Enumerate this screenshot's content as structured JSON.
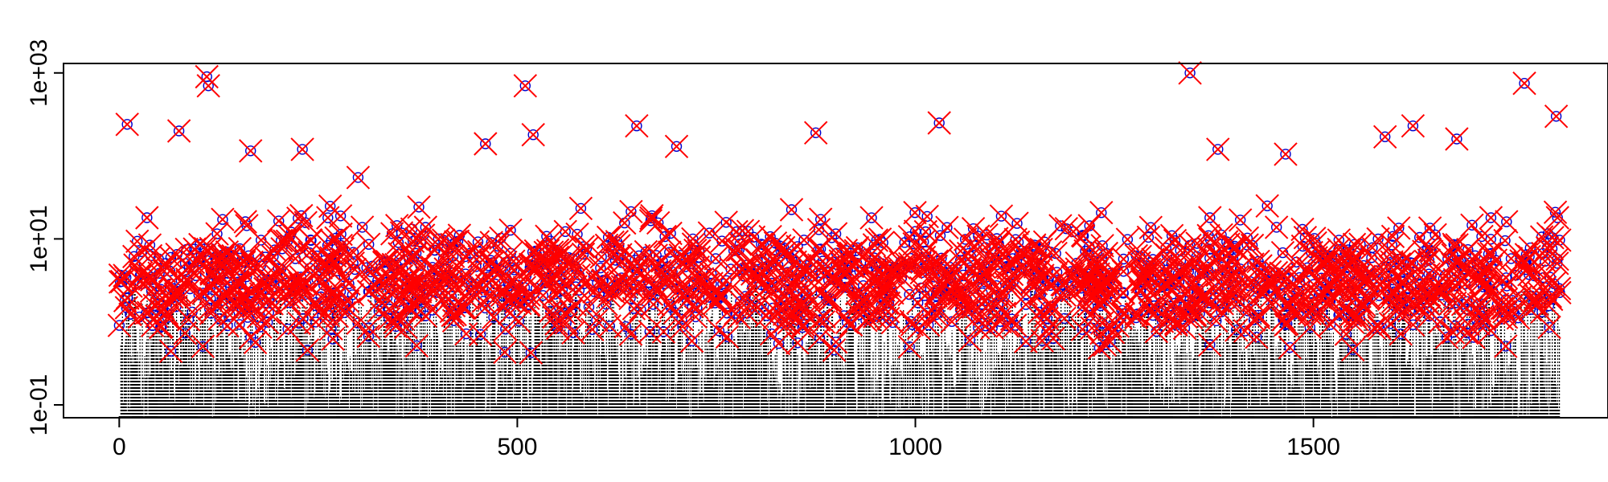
{
  "chart_data": {
    "type": "scatter",
    "title": "",
    "xlabel": "",
    "ylabel": "",
    "x_scale": "linear",
    "y_scale": "log",
    "xlim": [
      -70,
      1870
    ],
    "ylim": [
      0.07,
      1300
    ],
    "grid": false,
    "x_ticks": [
      {
        "value": 0,
        "label": "0"
      },
      {
        "value": 500,
        "label": "500"
      },
      {
        "value": 1000,
        "label": "1000"
      },
      {
        "value": 1500,
        "label": "1500"
      }
    ],
    "y_ticks": [
      {
        "value": 0.1,
        "label": "1e-01"
      },
      {
        "value": 10,
        "label": "1e+01"
      },
      {
        "value": 1000,
        "label": "1e+03"
      }
    ],
    "n_observations": 1810,
    "series_styles": [
      {
        "kind": "dotted-vertical-lines",
        "color": "#000000"
      },
      {
        "kind": "open-circle",
        "color": "#0000cc"
      },
      {
        "kind": "cross",
        "color": "#ff0000"
      }
    ],
    "peaks": [
      {
        "x": 10,
        "y": 240
      },
      {
        "x": 110,
        "y": 900
      },
      {
        "x": 112,
        "y": 700
      },
      {
        "x": 75,
        "y": 200
      },
      {
        "x": 165,
        "y": 115
      },
      {
        "x": 230,
        "y": 120
      },
      {
        "x": 300,
        "y": 55
      },
      {
        "x": 460,
        "y": 140
      },
      {
        "x": 510,
        "y": 700
      },
      {
        "x": 520,
        "y": 180
      },
      {
        "x": 650,
        "y": 230
      },
      {
        "x": 700,
        "y": 130
      },
      {
        "x": 875,
        "y": 190
      },
      {
        "x": 1030,
        "y": 250
      },
      {
        "x": 1345,
        "y": 1000
      },
      {
        "x": 1380,
        "y": 120
      },
      {
        "x": 1465,
        "y": 105
      },
      {
        "x": 1590,
        "y": 170
      },
      {
        "x": 1625,
        "y": 230
      },
      {
        "x": 1680,
        "y": 160
      },
      {
        "x": 1765,
        "y": 750
      },
      {
        "x": 1805,
        "y": 300
      }
    ]
  }
}
